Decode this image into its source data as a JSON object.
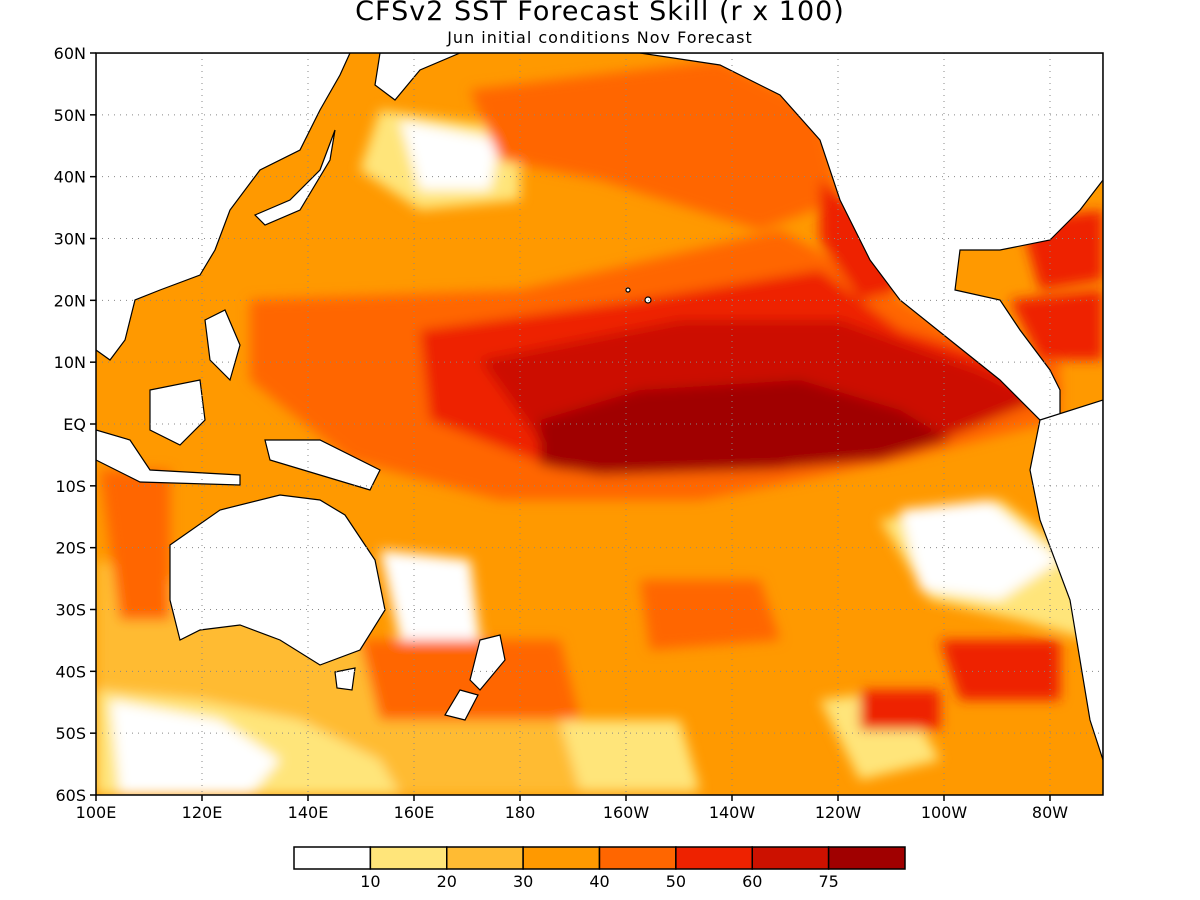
{
  "title": "CFSv2 SST Forecast Skill (r x 100)",
  "subtitle": "Jun initial conditions  Nov Forecast",
  "map": {
    "lon_range": [
      100,
      290
    ],
    "lat_range": [
      -60,
      60
    ],
    "lon_ticks": [
      {
        "value": 100,
        "label": "100E"
      },
      {
        "value": 120,
        "label": "120E"
      },
      {
        "value": 140,
        "label": "140E"
      },
      {
        "value": 160,
        "label": "160E"
      },
      {
        "value": 180,
        "label": "180"
      },
      {
        "value": 200,
        "label": "160W"
      },
      {
        "value": 220,
        "label": "140W"
      },
      {
        "value": 240,
        "label": "120W"
      },
      {
        "value": 260,
        "label": "100W"
      },
      {
        "value": 280,
        "label": "80W"
      }
    ],
    "lat_ticks": [
      {
        "value": 60,
        "label": "60N"
      },
      {
        "value": 50,
        "label": "50N"
      },
      {
        "value": 40,
        "label": "40N"
      },
      {
        "value": 30,
        "label": "30N"
      },
      {
        "value": 20,
        "label": "20N"
      },
      {
        "value": 10,
        "label": "10N"
      },
      {
        "value": 0,
        "label": "EQ"
      },
      {
        "value": -10,
        "label": "10S"
      },
      {
        "value": -20,
        "label": "20S"
      },
      {
        "value": -30,
        "label": "30S"
      },
      {
        "value": -40,
        "label": "40S"
      },
      {
        "value": -50,
        "label": "50S"
      },
      {
        "value": -60,
        "label": "60S"
      }
    ],
    "grid": "dotted"
  },
  "legend": {
    "colors": [
      "#ffffff",
      "#ffe57a",
      "#ffbb33",
      "#ff9900",
      "#ff6600",
      "#ee2200",
      "#cc1100",
      "#a00000"
    ],
    "labels": [
      "10",
      "20",
      "30",
      "40",
      "50",
      "60",
      "75"
    ]
  }
}
